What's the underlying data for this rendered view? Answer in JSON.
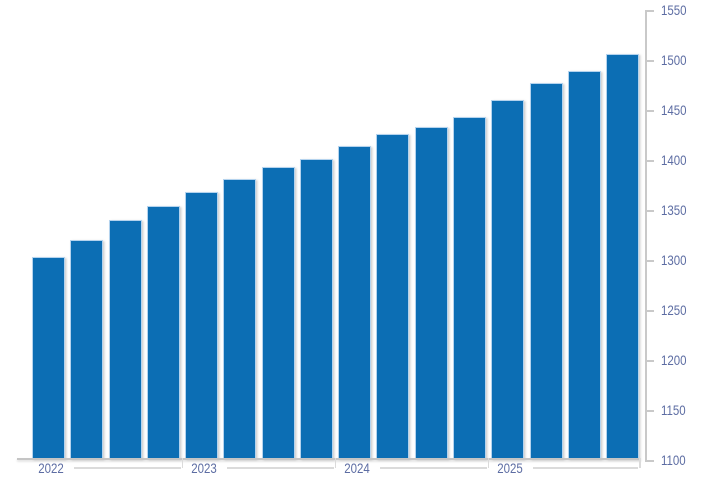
{
  "chart_data": {
    "type": "bar",
    "title": "",
    "x_groups": [
      "2022",
      "2023",
      "2024",
      "2025"
    ],
    "bars_per_group": 4,
    "values": [
      1304,
      1321,
      1341,
      1355,
      1369,
      1382,
      1394,
      1402,
      1415,
      1427,
      1434,
      1444,
      1461,
      1478,
      1490,
      1507
    ],
    "ylim": [
      1100,
      1550
    ],
    "ytick_step": 50,
    "y_tick_labels": [
      "1100",
      "1150",
      "1200",
      "1250",
      "1300",
      "1350",
      "1400",
      "1450",
      "1500",
      "1550"
    ],
    "y_axis_position": "right",
    "grid": "off",
    "legend": "none",
    "colors": {
      "bar_fill": "#0C6EB4",
      "bar_border": "#B4D3EE",
      "axis_line": "#C9C9C9",
      "baseline": "#C5C5C5",
      "separator_line": "#DBDBDB",
      "tick_label": "#5D6DA3",
      "background": "#FFFFFF"
    }
  }
}
